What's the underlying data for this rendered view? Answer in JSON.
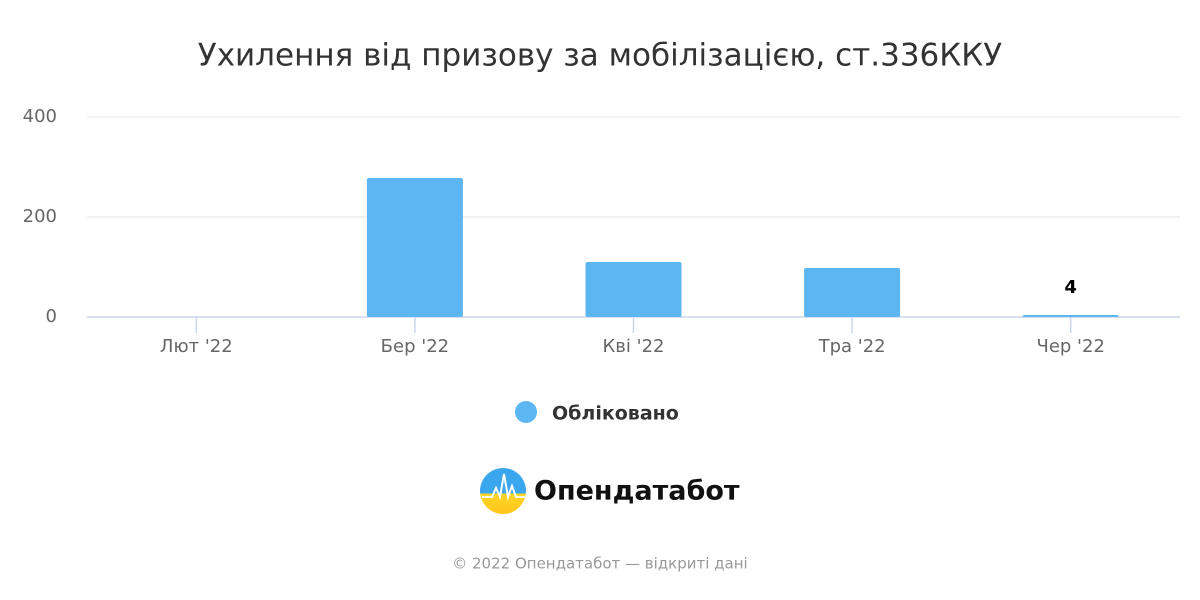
{
  "chart_data": {
    "type": "bar",
    "title": "Ухилення від призову за мобілізацією, ст.336ККУ",
    "categories": [
      "Лют '22",
      "Бер '22",
      "Кві '22",
      "Тра '22",
      "Чер '22"
    ],
    "series": [
      {
        "name": "Обліковано",
        "color": "#5cb6f1",
        "values": [
          null,
          278,
          110,
          98,
          4
        ]
      }
    ],
    "ylim": [
      0,
      400
    ],
    "yticks": [
      0,
      200,
      400
    ],
    "grid": true,
    "legend": "bottom"
  },
  "branding": {
    "logo_text": "Опендатабот",
    "footer": "© 2022 Опендатабот — відкриті дані"
  }
}
